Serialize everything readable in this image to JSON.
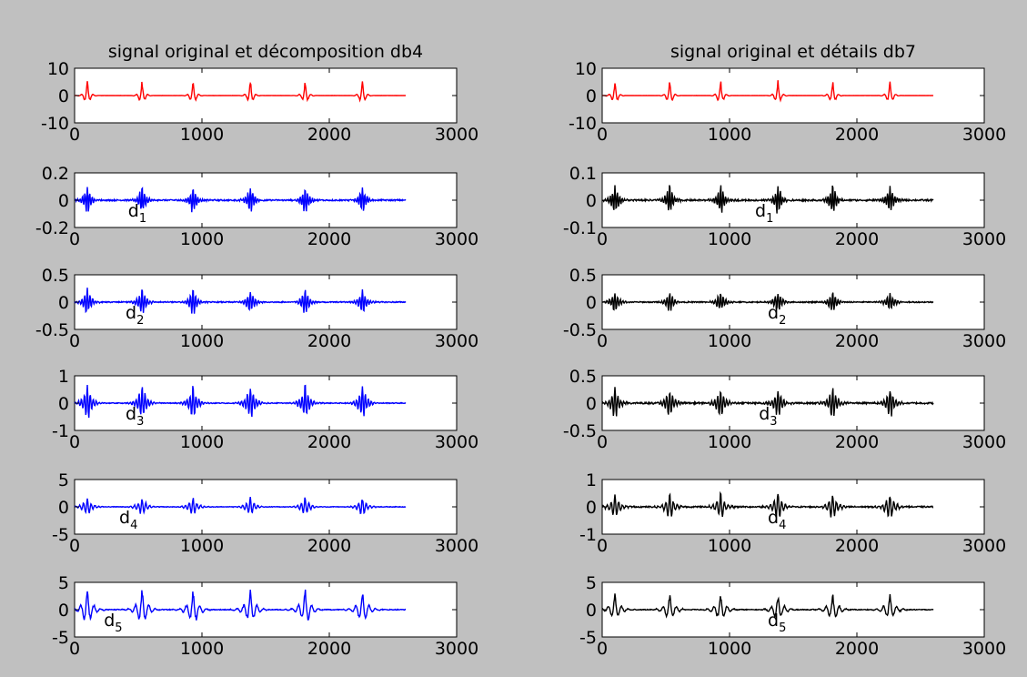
{
  "figure": {
    "background": "#c0c0c0"
  },
  "chart_data": [
    {
      "type": "line",
      "title": "signal original et décomposition db4",
      "column": 0,
      "row": 0,
      "color": "#ff0000",
      "xlim": [
        0,
        3000
      ],
      "ylim": [
        -10,
        10
      ],
      "yticks": [
        "10",
        "0",
        "-10"
      ],
      "xticks": [
        "0",
        "1000",
        "2000",
        "3000"
      ],
      "label": null,
      "amp": 6,
      "decay": 2.2,
      "osc": 9,
      "noise": 0.05
    },
    {
      "type": "line",
      "title": "",
      "column": 0,
      "row": 1,
      "color": "#0000ff",
      "xlim": [
        0,
        3000
      ],
      "ylim": [
        -0.2,
        0.2
      ],
      "yticks": [
        "0.2",
        "0",
        "-0.2"
      ],
      "xticks": [
        "0",
        "1000",
        "2000",
        "3000"
      ],
      "label": {
        "base": "d",
        "sub": "1",
        "x": 420
      },
      "amp": 0.14,
      "decay": 1.6,
      "osc": 22,
      "noise": 0.01
    },
    {
      "type": "line",
      "title": "",
      "column": 0,
      "row": 2,
      "color": "#0000ff",
      "xlim": [
        0,
        3000
      ],
      "ylim": [
        -0.5,
        0.5
      ],
      "yticks": [
        "0.5",
        "0",
        "-0.5"
      ],
      "xticks": [
        "0",
        "1000",
        "2000",
        "3000"
      ],
      "label": {
        "base": "d",
        "sub": "2",
        "x": 400
      },
      "amp": 0.3,
      "decay": 1.4,
      "osc": 20,
      "noise": 0.02
    },
    {
      "type": "line",
      "title": "",
      "column": 0,
      "row": 3,
      "color": "#0000ff",
      "xlim": [
        0,
        3000
      ],
      "ylim": [
        -1,
        1
      ],
      "yticks": [
        "1",
        "0",
        "-1"
      ],
      "xticks": [
        "0",
        "1000",
        "2000",
        "3000"
      ],
      "label": {
        "base": "d",
        "sub": "3",
        "x": 400
      },
      "amp": 0.8,
      "decay": 1.3,
      "osc": 18,
      "noise": 0.03
    },
    {
      "type": "line",
      "title": "",
      "column": 0,
      "row": 4,
      "color": "#0000ff",
      "xlim": [
        0,
        3000
      ],
      "ylim": [
        -5,
        5
      ],
      "yticks": [
        "5",
        "0",
        "-5"
      ],
      "xticks": [
        "0",
        "1000",
        "2000",
        "3000"
      ],
      "label": {
        "base": "d",
        "sub": "4",
        "x": 350
      },
      "amp": 2,
      "decay": 1.2,
      "osc": 14,
      "noise": 0.1
    },
    {
      "type": "line",
      "title": "",
      "column": 0,
      "row": 5,
      "color": "#0000ff",
      "xlim": [
        0,
        3000
      ],
      "ylim": [
        -5,
        5
      ],
      "yticks": [
        "5",
        "0",
        "-5"
      ],
      "xticks": [
        "0",
        "1000",
        "2000",
        "3000"
      ],
      "label": {
        "base": "d",
        "sub": "5",
        "x": 230
      },
      "amp": 4,
      "decay": 1.1,
      "osc": 8,
      "noise": 0.15
    },
    {
      "type": "line",
      "title": "signal original et détails db7",
      "column": 1,
      "row": 0,
      "color": "#ff0000",
      "xlim": [
        0,
        3000
      ],
      "ylim": [
        -10,
        10
      ],
      "yticks": [
        "10",
        "0",
        "-10"
      ],
      "xticks": [
        "0",
        "1000",
        "2000",
        "3000"
      ],
      "label": null,
      "amp": 6,
      "decay": 2.2,
      "osc": 9,
      "noise": 0.05
    },
    {
      "type": "line",
      "title": "",
      "column": 1,
      "row": 1,
      "color": "#000000",
      "xlim": [
        0,
        3000
      ],
      "ylim": [
        -0.1,
        0.1
      ],
      "yticks": [
        "0.1",
        "0",
        "-0.1"
      ],
      "xticks": [
        "0",
        "1000",
        "2000",
        "3000"
      ],
      "label": {
        "base": "d",
        "sub": "1",
        "x": 1200
      },
      "amp": 0.075,
      "decay": 1.5,
      "osc": 22,
      "noise": 0.006
    },
    {
      "type": "line",
      "title": "",
      "column": 1,
      "row": 2,
      "color": "#000000",
      "xlim": [
        0,
        3000
      ],
      "ylim": [
        -0.5,
        0.5
      ],
      "yticks": [
        "0.5",
        "0",
        "-0.5"
      ],
      "xticks": [
        "0",
        "1000",
        "2000",
        "3000"
      ],
      "label": {
        "base": "d",
        "sub": "2",
        "x": 1300
      },
      "amp": 0.25,
      "decay": 1.4,
      "osc": 20,
      "noise": 0.02
    },
    {
      "type": "line",
      "title": "",
      "column": 1,
      "row": 3,
      "color": "#000000",
      "xlim": [
        0,
        3000
      ],
      "ylim": [
        -0.5,
        0.5
      ],
      "yticks": [
        "0.5",
        "0",
        "-0.5"
      ],
      "xticks": [
        "0",
        "1000",
        "2000",
        "3000"
      ],
      "label": {
        "base": "d",
        "sub": "3",
        "x": 1230
      },
      "amp": 0.35,
      "decay": 1.3,
      "osc": 18,
      "noise": 0.03
    },
    {
      "type": "line",
      "title": "",
      "column": 1,
      "row": 4,
      "color": "#000000",
      "xlim": [
        0,
        3000
      ],
      "ylim": [
        -1,
        1
      ],
      "yticks": [
        "1",
        "0",
        "-1"
      ],
      "xticks": [
        "0",
        "1000",
        "2000",
        "3000"
      ],
      "label": {
        "base": "d",
        "sub": "4",
        "x": 1300
      },
      "amp": 0.6,
      "decay": 1.2,
      "osc": 14,
      "noise": 0.05
    },
    {
      "type": "line",
      "title": "",
      "column": 1,
      "row": 5,
      "color": "#000000",
      "xlim": [
        0,
        3000
      ],
      "ylim": [
        -5,
        5
      ],
      "yticks": [
        "5",
        "0",
        "-5"
      ],
      "xticks": [
        "0",
        "1000",
        "2000",
        "3000"
      ],
      "label": {
        "base": "d",
        "sub": "5",
        "x": 1300
      },
      "amp": 3,
      "decay": 1.1,
      "osc": 8,
      "noise": 0.15
    }
  ]
}
